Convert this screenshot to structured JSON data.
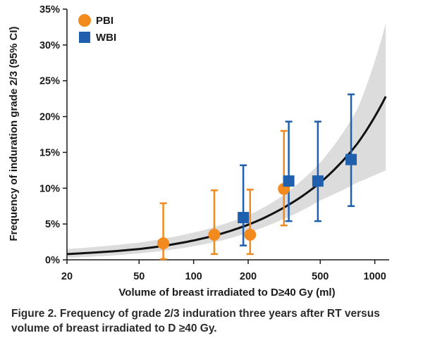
{
  "chart_data": {
    "type": "scatter",
    "ylabel": "Frequency of induration grade 2/3 (95% CI)",
    "xlabel": "Volume of breast irradiated to D≥40 Gy (ml)",
    "x_scale": "log",
    "xlim": [
      20,
      1200
    ],
    "ylim": [
      0,
      35
    ],
    "x_ticks": [
      20,
      50,
      100,
      200,
      500,
      1000
    ],
    "x_tick_labels": [
      "20",
      "50",
      "100",
      "200",
      "500",
      "1000"
    ],
    "y_ticks": [
      0,
      5,
      10,
      15,
      20,
      25,
      30,
      35
    ],
    "y_tick_labels": [
      "0%",
      "5%",
      "10%",
      "15%",
      "20%",
      "25%",
      "30%",
      "35%"
    ],
    "legend_position": "top-left",
    "series": [
      {
        "name": "PBI",
        "marker": "circle",
        "color": "#f28a1e",
        "points": [
          {
            "x": 68,
            "y": 2.3,
            "ci_low": 0.1,
            "ci_high": 7.9
          },
          {
            "x": 130,
            "y": 3.5,
            "ci_low": 0.8,
            "ci_high": 9.7
          },
          {
            "x": 205,
            "y": 3.5,
            "ci_low": 0.8,
            "ci_high": 9.8
          },
          {
            "x": 315,
            "y": 9.9,
            "ci_low": 4.8,
            "ci_high": 18.0
          }
        ]
      },
      {
        "name": "WBI",
        "marker": "square",
        "color": "#1f5fae",
        "points": [
          {
            "x": 188,
            "y": 5.9,
            "ci_low": 2.0,
            "ci_high": 13.2
          },
          {
            "x": 335,
            "y": 11.0,
            "ci_low": 5.4,
            "ci_high": 19.3
          },
          {
            "x": 485,
            "y": 11.0,
            "ci_low": 5.4,
            "ci_high": 19.3
          },
          {
            "x": 740,
            "y": 14.0,
            "ci_low": 7.5,
            "ci_high": 23.1
          }
        ]
      }
    ],
    "fit_curve": {
      "color": "#111111",
      "x": [
        20,
        50,
        100,
        200,
        300,
        500,
        800,
        1150
      ],
      "y": [
        0.8,
        1.5,
        2.7,
        4.9,
        7.0,
        10.8,
        16.2,
        22.8
      ]
    },
    "confidence_band": {
      "color": "#dcdcdc",
      "x": [
        20,
        50,
        100,
        200,
        300,
        500,
        800,
        1150
      ],
      "lower": [
        0.3,
        0.9,
        1.9,
        3.8,
        5.5,
        8.3,
        10.8,
        12.5
      ],
      "upper": [
        1.5,
        2.4,
        3.8,
        6.2,
        8.7,
        13.6,
        21.0,
        33.0
      ]
    }
  },
  "caption": {
    "line1": "Figure 2. Frequency of grade 2/3 induration three years after RT versus",
    "line2": "volume of breast irradiated to D ≥40 Gy."
  }
}
